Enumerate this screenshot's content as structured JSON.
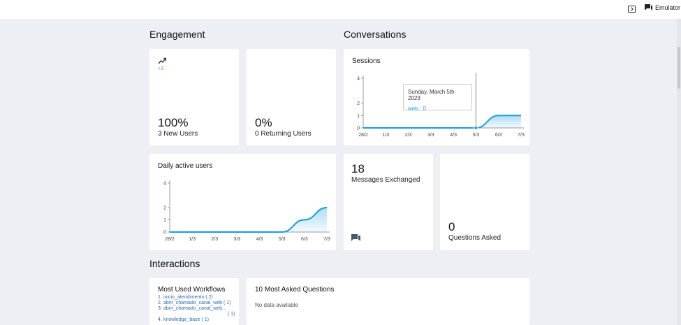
{
  "topbar": {
    "emulator_label": "Emulator"
  },
  "sections": {
    "engagement": "Engagement",
    "conversations": "Conversations",
    "interactions": "Interactions"
  },
  "new_users": {
    "trend": "+3",
    "value": "100%",
    "label": "3 New Users"
  },
  "returning_users": {
    "value": "0%",
    "label": "0 Returning Users"
  },
  "sessions": {
    "title": "Sessions",
    "tooltip_date": "Sunday, March 5th 2023",
    "tooltip_value": "web : 0"
  },
  "daily_active": {
    "title": "Daily active users"
  },
  "messages": {
    "value": "18",
    "label": "Messages Exchanged"
  },
  "questions": {
    "value": "0",
    "label": "Questions Asked"
  },
  "workflows": {
    "title": "Most Used Workflows",
    "items": [
      {
        "num": "1.",
        "name": "inicio_atendimento",
        "count": "( 2)"
      },
      {
        "num": "2.",
        "name": "abrir_chamado_canal_web",
        "count": "( 1)"
      },
      {
        "num": "3.",
        "name": "abrir_chamado_canal_web...",
        "count": "( 1)"
      },
      {
        "num": "4.",
        "name": "knowledge_base",
        "count": "( 1)"
      }
    ]
  },
  "top_questions": {
    "title": "10 Most Asked Questions",
    "empty": "No data available"
  },
  "colors": {
    "accent": "#1a9be0",
    "trend_green": "#4caf50"
  },
  "chart_data": [
    {
      "type": "area",
      "name": "sessions",
      "categories": [
        "28/2",
        "1/3",
        "2/3",
        "3/3",
        "4/3",
        "5/3",
        "6/3",
        "7/3"
      ],
      "series": [
        {
          "name": "web",
          "values": [
            0,
            0,
            0,
            0,
            0,
            0,
            1,
            1
          ]
        }
      ],
      "yticks": [
        0,
        1,
        2,
        4
      ],
      "ylim": [
        0,
        4
      ]
    },
    {
      "type": "area",
      "name": "daily_active",
      "categories": [
        "28/2",
        "1/3",
        "2/3",
        "3/3",
        "4/3",
        "5/3",
        "6/3",
        "7/3"
      ],
      "series": [
        {
          "values": [
            0,
            0,
            0,
            0,
            0,
            0,
            1,
            2
          ]
        }
      ],
      "yticks": [
        0,
        1,
        2,
        4
      ],
      "ylim": [
        0,
        4
      ]
    }
  ]
}
